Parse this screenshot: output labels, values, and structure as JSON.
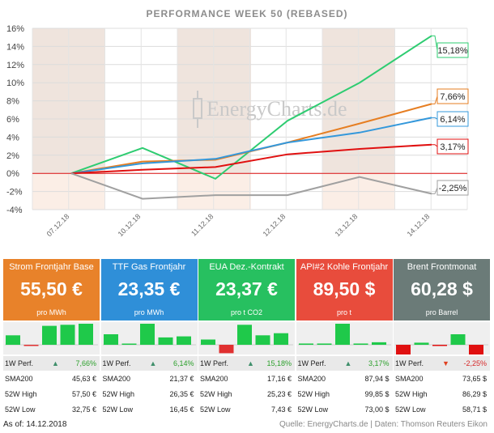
{
  "chart_data": {
    "type": "line",
    "title": "PERFORMANCE WEEK 50 (REBASED)",
    "x": [
      "07.12.18",
      "10.12.18",
      "11.12.18",
      "12.12.18",
      "13.12.18",
      "14.12.18"
    ],
    "ylim": [
      -4,
      16
    ],
    "yticks": [
      "-4%",
      "-2%",
      "0%",
      "2%",
      "4%",
      "6%",
      "8%",
      "10%",
      "12%",
      "14%",
      "16%"
    ],
    "grid": true,
    "series": [
      {
        "color": "#2ecc71",
        "values": [
          0,
          2.8,
          -0.6,
          5.8,
          10.0,
          15.18
        ],
        "end_label": "15,18%"
      },
      {
        "color": "#e67e22",
        "values": [
          0,
          1.3,
          1.5,
          3.4,
          5.5,
          7.66
        ],
        "end_label": "7,66%"
      },
      {
        "color": "#3498db",
        "values": [
          0,
          1.1,
          1.6,
          3.4,
          4.5,
          6.14
        ],
        "end_label": "6,14%"
      },
      {
        "color": "#e01010",
        "values": [
          0,
          0.4,
          0.7,
          2.1,
          2.7,
          3.17
        ],
        "end_label": "3,17%"
      },
      {
        "color": "#a0a0a0",
        "values": [
          0,
          -2.8,
          -2.4,
          -2.4,
          -0.4,
          -2.25
        ],
        "end_label": "-2,25%"
      }
    ]
  },
  "watermark": "EnergyCharts.de",
  "tiles": [
    {
      "title": "Strom Frontjahr Base",
      "price": "55,50 €",
      "unit": "pro MWh",
      "color": "#e8822a",
      "spark": [
        0.45,
        -0.05,
        0.9,
        0.95,
        1.0
      ],
      "spark_neg_color": "#e03030",
      "perf": "7,66%",
      "perf_dir": "up",
      "sma": "45,63 €",
      "high": "57,50 €",
      "low": "32,75 €"
    },
    {
      "title": "TTF Gas Frontjahr",
      "price": "23,35 €",
      "unit": "pro MWh",
      "color": "#2f8fd8",
      "spark": [
        0.5,
        0.05,
        1.0,
        0.35,
        0.4
      ],
      "spark_neg_color": "#e03030",
      "perf": "6,14%",
      "perf_dir": "up",
      "sma": "21,37 €",
      "high": "26,35 €",
      "low": "16,45 €"
    },
    {
      "title": "EUA Dez.-Kontrakt",
      "price": "23,37 €",
      "unit": "pro t CO2",
      "color": "#27c060",
      "spark": [
        0.25,
        -0.4,
        0.95,
        0.45,
        0.55
      ],
      "spark_neg_color": "#e03030",
      "perf": "15,18%",
      "perf_dir": "up",
      "sma": "17,16 €",
      "high": "25,23 €",
      "low": "7,43 €"
    },
    {
      "title": "API#2 Kohle Frontjahr",
      "price": "89,50 $",
      "unit": "pro t",
      "color": "#e84c3c",
      "spark": [
        0.06,
        0.06,
        1.0,
        0.06,
        0.12
      ],
      "spark_neg_color": "#e03030",
      "perf": "3,17%",
      "perf_dir": "up",
      "sma": "87,94 $",
      "high": "99,85 $",
      "low": "73,00 $"
    },
    {
      "title": "Brent Frontmonat",
      "price": "60,28 $",
      "unit": "pro Barrel",
      "color": "#6b7b78",
      "spark": [
        -0.75,
        0.1,
        -0.05,
        0.5,
        -0.55
      ],
      "spark_neg_color": "#e01010",
      "perf": "-2,25%",
      "perf_dir": "down",
      "sma": "73,65 $",
      "high": "86,29 $",
      "low": "58,71 $"
    }
  ],
  "labels": {
    "perf": "1W Perf.",
    "sma": "SMA200",
    "high": "52W High",
    "low": "52W Low"
  },
  "footer": {
    "asof": "As of:  14.12.2018",
    "source": "Quelle: EnergyCharts.de | Daten: Thomson Reuters Eikon"
  }
}
